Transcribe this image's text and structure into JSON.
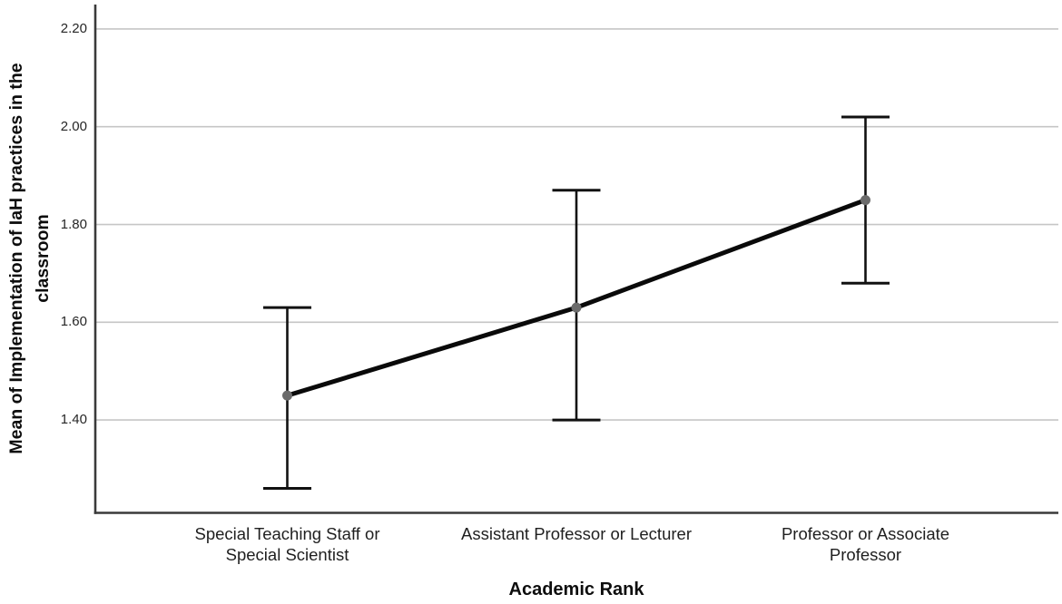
{
  "chart_data": {
    "type": "line",
    "title": "",
    "xlabel": "Academic Rank",
    "ylabel": "Mean of Implementation of IaH practices in the classroom",
    "ylabel_lines": [
      "Mean of Implementation of IaH practices in the",
      "classroom"
    ],
    "categories": [
      "Special Teaching Staff or Special Scientist",
      "Assistant Professor or Lecturer",
      "Professor or Associate Professor"
    ],
    "category_label_lines": [
      [
        "Special Teaching Staff or",
        "Special Scientist"
      ],
      [
        "Assistant Professor or Lecturer"
      ],
      [
        "Professor or Associate",
        "Professor"
      ]
    ],
    "series": [
      {
        "name": "Mean of Implementation of IaH practices",
        "values": [
          1.45,
          1.63,
          1.85
        ]
      }
    ],
    "error_bars": [
      {
        "low": 1.26,
        "high": 1.63
      },
      {
        "low": 1.4,
        "high": 1.87
      },
      {
        "low": 1.68,
        "high": 2.02
      }
    ],
    "y_ticks": [
      2.2,
      2.0,
      1.8,
      1.6,
      1.4
    ],
    "y_tick_labels": [
      "2.20",
      "2.00",
      "1.80",
      "1.60",
      "1.40"
    ],
    "ylim": [
      1.21,
      2.25
    ],
    "grid": "horizontal-only",
    "legend": "none",
    "marker": "filled-circle",
    "colors": {
      "line": "#0a0a0a",
      "marker": "#6b6b6b",
      "error_bar": "#111111",
      "gridline": "#c6c6c6",
      "axis": "#3a3a3a",
      "text": "#1a1a1a",
      "background": "#ffffff"
    }
  }
}
